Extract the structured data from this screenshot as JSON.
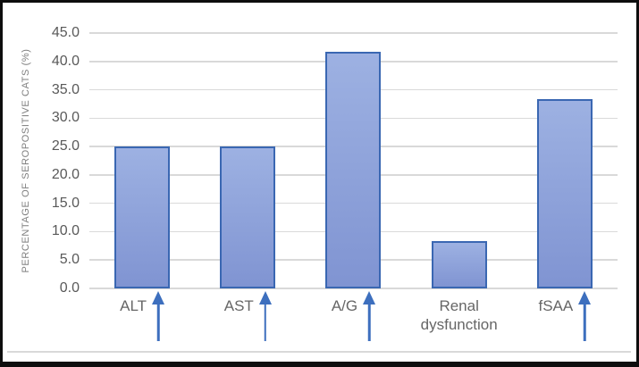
{
  "chart_data": {
    "type": "bar",
    "title": "",
    "xlabel": "",
    "ylabel": "PERCENTAGE OF SEROPOSITIVE CATS (%)",
    "ylim": [
      0,
      45
    ],
    "ytick_step": 5,
    "yticks": [
      "45.0",
      "40.0",
      "35.0",
      "30.0",
      "25.0",
      "20.0",
      "15.0",
      "10.0",
      "5.0",
      "0.0"
    ],
    "categories": [
      "ALT",
      "AST",
      "A/G",
      "Renal dysfunction",
      "fSAA"
    ],
    "values": [
      25.0,
      25.0,
      41.7,
      8.3,
      33.3
    ],
    "arrow_after_label": [
      true,
      true,
      true,
      false,
      true
    ],
    "arrow_icon": "up-arrow",
    "legend": "none",
    "grid": "horizontal",
    "colors": {
      "bar_fill_top": "#9db1e2",
      "bar_fill_bottom": "#8094d2",
      "bar_border": "#3a67b2",
      "gridline": "#d9d9d9",
      "tick_text": "#595959",
      "label_text": "#666666",
      "ylabel_text": "#7f7f7f",
      "arrow": "#3d6fbe",
      "frame_border": "#0d0d0d",
      "background": "#ffffff"
    }
  }
}
